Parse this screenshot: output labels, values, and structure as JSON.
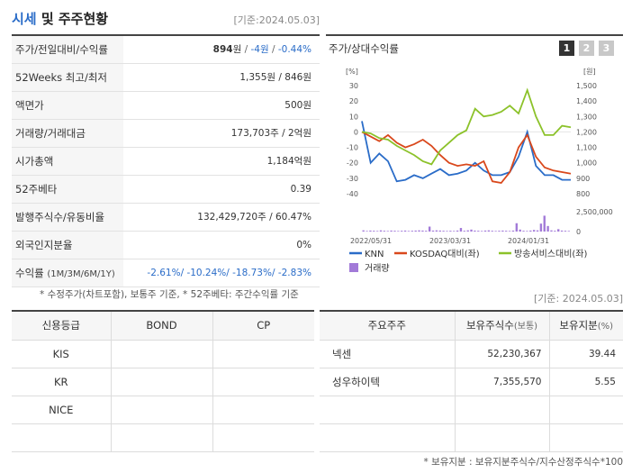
{
  "header": {
    "title_accent": "시세",
    "title_rest": " 및 주주현황",
    "ref_date": "[기준:2024.05.03]"
  },
  "quote": {
    "rows": [
      {
        "label": "주가/전일대비/수익률",
        "price": "894",
        "price_unit": "원",
        "sep1": " / ",
        "change": "-4원",
        "sep2": " / ",
        "rate": "-0.44%"
      },
      {
        "label": "52Weeks 최고/최저",
        "value": "1,355원 / 846원"
      },
      {
        "label": "액면가",
        "value": "500원"
      },
      {
        "label": "거래량/거래대금",
        "value": "173,703주 / 2억원"
      },
      {
        "label": "시가총액",
        "value": "1,184억원"
      },
      {
        "label": "52주베타",
        "value": "0.39"
      },
      {
        "label": "발행주식수/유동비율",
        "value": "132,429,720주 / 60.47%"
      },
      {
        "label": "외국인지분율",
        "value": "0%"
      },
      {
        "label": "수익률",
        "label_small": "(1M/3M/6M/1Y)",
        "value": "-2.61%/ -10.24%/ -18.73%/ -2.83%"
      }
    ],
    "footnote": "* 수정주가(차트포함), 보통주 기준, * 52주베타: 주간수익률 기준"
  },
  "chart_panel": {
    "title": "주가/상대수익률",
    "tabs": [
      "1",
      "2",
      "3"
    ],
    "active_tab": 0
  },
  "chart_data": {
    "type": "line",
    "y_left_unit": "[%]",
    "y_right_unit": "[원]",
    "y_left_ticks": [
      "30",
      "20",
      "10",
      "0",
      "-10",
      "-20",
      "-30",
      "-40"
    ],
    "y_right_ticks": [
      "1,500",
      "1,400",
      "1,300",
      "1,200",
      "1,100",
      "1,000",
      "900",
      "800"
    ],
    "volume_tick": "2,500,000",
    "volume_zero": "0",
    "x_tick_labels": [
      "2022/05/31",
      "2023/03/31",
      "2024/01/31"
    ],
    "ylim_left": [
      -40,
      30
    ],
    "series": [
      {
        "name": "KNN",
        "color": "#2a6cc8",
        "values": [
          7,
          -20,
          -14,
          -19,
          -32,
          -31,
          -28,
          -30,
          -27,
          -24,
          -28,
          -27,
          -25,
          -20,
          -25,
          -28,
          -28,
          -26,
          -16,
          0,
          -22,
          -28,
          -28,
          -31,
          -31
        ]
      },
      {
        "name": "KOSDAQ대비(좌)",
        "color": "#d9481c",
        "values": [
          0,
          -3,
          -6,
          -2,
          -7,
          -10,
          -8,
          -5,
          -9,
          -15,
          -20,
          -22,
          -21,
          -22,
          -19,
          -32,
          -33,
          -26,
          -10,
          -2,
          -16,
          -23,
          -25,
          -26,
          -27
        ]
      },
      {
        "name": "방송서비스대비(좌)",
        "color": "#8cc22a",
        "values": [
          0,
          -1,
          -4,
          -5,
          -9,
          -12,
          -15,
          -19,
          -21,
          -12,
          -7,
          -2,
          1,
          15,
          10,
          11,
          13,
          17,
          12,
          27,
          10,
          -2,
          -2,
          4,
          3
        ]
      },
      {
        "name": "거래량",
        "color": "#a27ad8",
        "type": "bar",
        "values": [
          6,
          3,
          5,
          4,
          3,
          6,
          4,
          3,
          5,
          4,
          3,
          4,
          5,
          3,
          4,
          5,
          6,
          5,
          4,
          25,
          5,
          6,
          5,
          4,
          3,
          4,
          3,
          5,
          18,
          4,
          6,
          10,
          5,
          4,
          3,
          5,
          6,
          4,
          3,
          4,
          5,
          4,
          3,
          5,
          42,
          10,
          4,
          3,
          5,
          8,
          6,
          40,
          80,
          28,
          6,
          4,
          12,
          5,
          4,
          3
        ]
      }
    ],
    "legend": [
      "KNN",
      "KOSDAQ대비(좌)",
      "방송서비스대비(좌)",
      "거래량"
    ]
  },
  "ref_date2": "[기준: 2024.05.03]",
  "credit": {
    "headers": [
      "신용등급",
      "BOND",
      "CP"
    ],
    "rows": [
      [
        "KIS",
        "",
        ""
      ],
      [
        "KR",
        "",
        ""
      ],
      [
        "NICE",
        "",
        ""
      ],
      [
        "",
        "",
        ""
      ]
    ]
  },
  "holders": {
    "headers": [
      "주요주주",
      "보유주식수",
      "(보통)",
      "보유지분",
      "(%)"
    ],
    "rows": [
      {
        "name": "넥센",
        "shares": "52,230,367",
        "pct": "39.44"
      },
      {
        "name": "성우하이텍",
        "shares": "7,355,570",
        "pct": "5.55"
      },
      {
        "name": "",
        "shares": "",
        "pct": ""
      },
      {
        "name": "",
        "shares": "",
        "pct": ""
      }
    ],
    "footnote": "* 보유지분 : 보유지분주식수/지수산정주식수*100"
  }
}
